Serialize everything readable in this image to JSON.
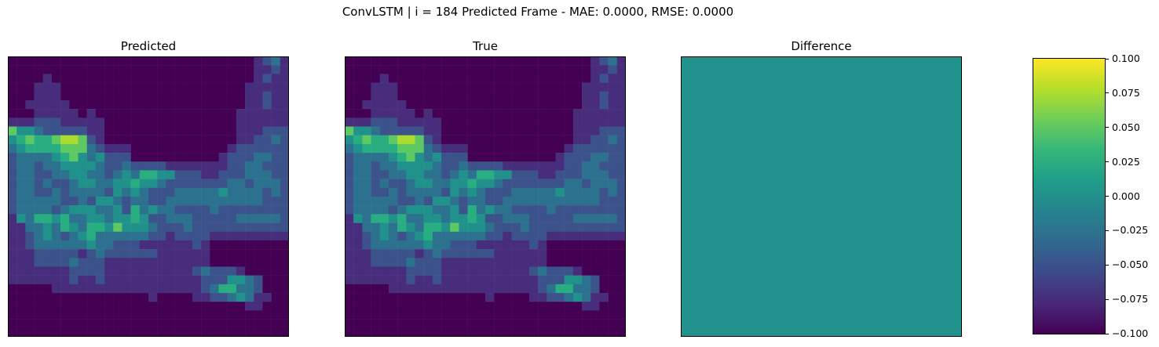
{
  "figure": {
    "title": "ConvLSTM | i = 184 Predicted Frame - MAE: 0.0000, RMSE: 0.0000"
  },
  "chart_data": [
    {
      "type": "heatmap",
      "title": "Predicted",
      "grid_size": [
        32,
        32
      ],
      "colormap": "viridis",
      "value_range": [
        0,
        1
      ],
      "approx_values_rows": [
        "00000000000000000000000000001231",
        "00000000000000000000000000001121",
        "00001000000000000000000000001211",
        "00011100000000000000000000011111",
        "00011100000000000000000000011211",
        "00111110000000000000000000011211",
        "00011111010000000000000000111111",
        "11122211111000000000000000111111",
        "64432222211000000000000000111222",
        "45655677621000000000000000112232",
        "34555566632111000000000001222222",
        "23333456434222000000000012223322",
        "23323344443223222211111112233222",
        "23322334433234355442221122233322",
        "23323223443344544322222223323332",
        "23322323333243432223333343333232",
        "23333322324432332233333333333222",
        "23333234443342534332222322222222",
        "14355453344344542233322222333332",
        "11334354355464443222322222222222",
        "11234323453333332212222111111111",
        "11233333343322211111121000000000",
        "11122222123222222111111000000000",
        "11122223222111111111111000000000",
        "11111112222111111111123222100000",
        "11111112112111111111112224432000",
        "00000111111111111111112355332000",
        "00000000000000001000011223431100",
        "00000000000000000000000000011000",
        "00000000000000000000000000000000",
        "00000000000000000000000000000000",
        "00000000000000000000000000000000"
      ]
    },
    {
      "type": "heatmap",
      "title": "True",
      "grid_size": [
        32,
        32
      ],
      "colormap": "viridis",
      "value_range": [
        0,
        1
      ],
      "approx_values_rows": "same as Predicted"
    },
    {
      "type": "heatmap",
      "title": "Difference",
      "grid_size": [
        32,
        32
      ],
      "colormap": "viridis",
      "value_range": [
        -0.1,
        0.1
      ],
      "uniform_value": 0.0,
      "colorbar": {
        "ticks": [
          "0.100",
          "0.075",
          "0.050",
          "0.025",
          "0.000",
          "−0.025",
          "−0.050",
          "−0.075",
          "−0.100"
        ],
        "range": [
          -0.1,
          0.1
        ]
      }
    }
  ]
}
